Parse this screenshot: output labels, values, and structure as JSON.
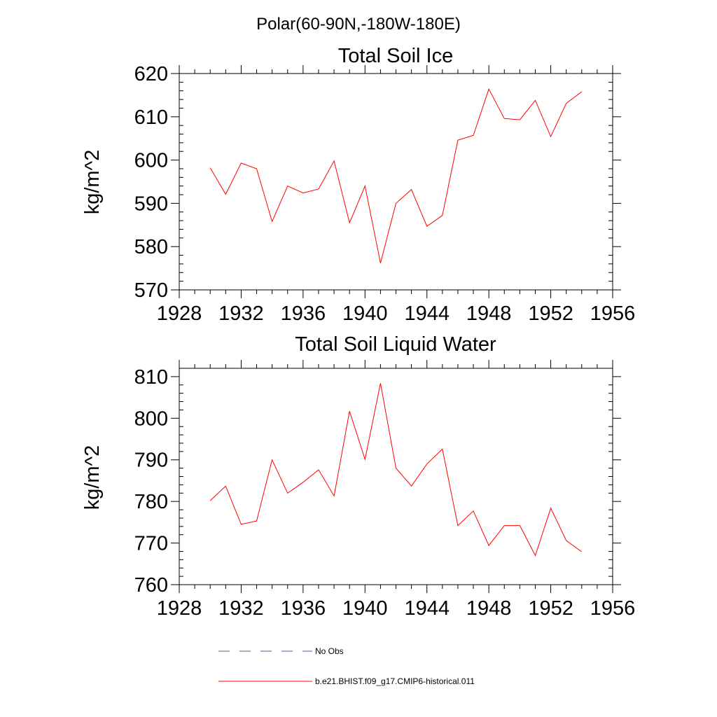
{
  "figure": {
    "suptitle": "Polar(60-90N,-180W-180E)"
  },
  "legend": {
    "placement": "bottom-center",
    "entries": [
      {
        "label": "No Obs",
        "color": "#5a5a8c",
        "dash": "dashed"
      },
      {
        "label": "b.e21.BHIST.f09_g17.CMIP6-historical.011",
        "color": "#ff0000",
        "dash": "solid"
      }
    ]
  },
  "chart_data": [
    {
      "type": "line",
      "title": "Total Soil Ice",
      "xlabel": "",
      "ylabel": "kg/m^2",
      "xlim": [
        1928,
        1956
      ],
      "ylim": [
        570,
        620
      ],
      "xticks": [
        1928,
        1932,
        1936,
        1940,
        1944,
        1948,
        1952,
        1956
      ],
      "yticks": [
        570,
        580,
        590,
        600,
        610,
        620
      ],
      "grid": false,
      "x": [
        1930,
        1931,
        1932,
        1933,
        1934,
        1935,
        1936,
        1937,
        1938,
        1939,
        1940,
        1941,
        1942,
        1943,
        1944,
        1945,
        1946,
        1947,
        1948,
        1949,
        1950,
        1951,
        1952,
        1953,
        1954
      ],
      "series": [
        {
          "name": "b.e21.BHIST.f09_g17.CMIP6-historical.011",
          "color": "#ff0000",
          "values": [
            598.2,
            592.1,
            599.3,
            598.0,
            585.8,
            594.0,
            592.4,
            593.3,
            599.8,
            585.5,
            594.0,
            576.2,
            590.0,
            593.2,
            584.7,
            587.2,
            604.6,
            605.7,
            616.4,
            609.6,
            609.3,
            613.8,
            605.4,
            613.1,
            615.8
          ]
        }
      ]
    },
    {
      "type": "line",
      "title": "Total Soil Liquid Water",
      "xlabel": "",
      "ylabel": "kg/m^2",
      "xlim": [
        1928,
        1956
      ],
      "ylim": [
        760,
        812
      ],
      "xticks": [
        1928,
        1932,
        1936,
        1940,
        1944,
        1948,
        1952,
        1956
      ],
      "yticks": [
        760,
        770,
        780,
        790,
        800,
        810
      ],
      "grid": false,
      "x": [
        1930,
        1931,
        1932,
        1933,
        1934,
        1935,
        1936,
        1937,
        1938,
        1939,
        1940,
        1941,
        1942,
        1943,
        1944,
        1945,
        1946,
        1947,
        1948,
        1949,
        1950,
        1951,
        1952,
        1953,
        1954
      ],
      "series": [
        {
          "name": "b.e21.BHIST.f09_g17.CMIP6-historical.011",
          "color": "#ff0000",
          "values": [
            780.2,
            783.7,
            774.5,
            775.3,
            790.0,
            782.0,
            784.6,
            787.6,
            781.3,
            801.7,
            790.1,
            808.4,
            788.0,
            783.7,
            789.0,
            792.6,
            774.2,
            777.7,
            769.4,
            774.2,
            774.2,
            767.0,
            778.4,
            770.6,
            767.9
          ]
        }
      ]
    }
  ]
}
